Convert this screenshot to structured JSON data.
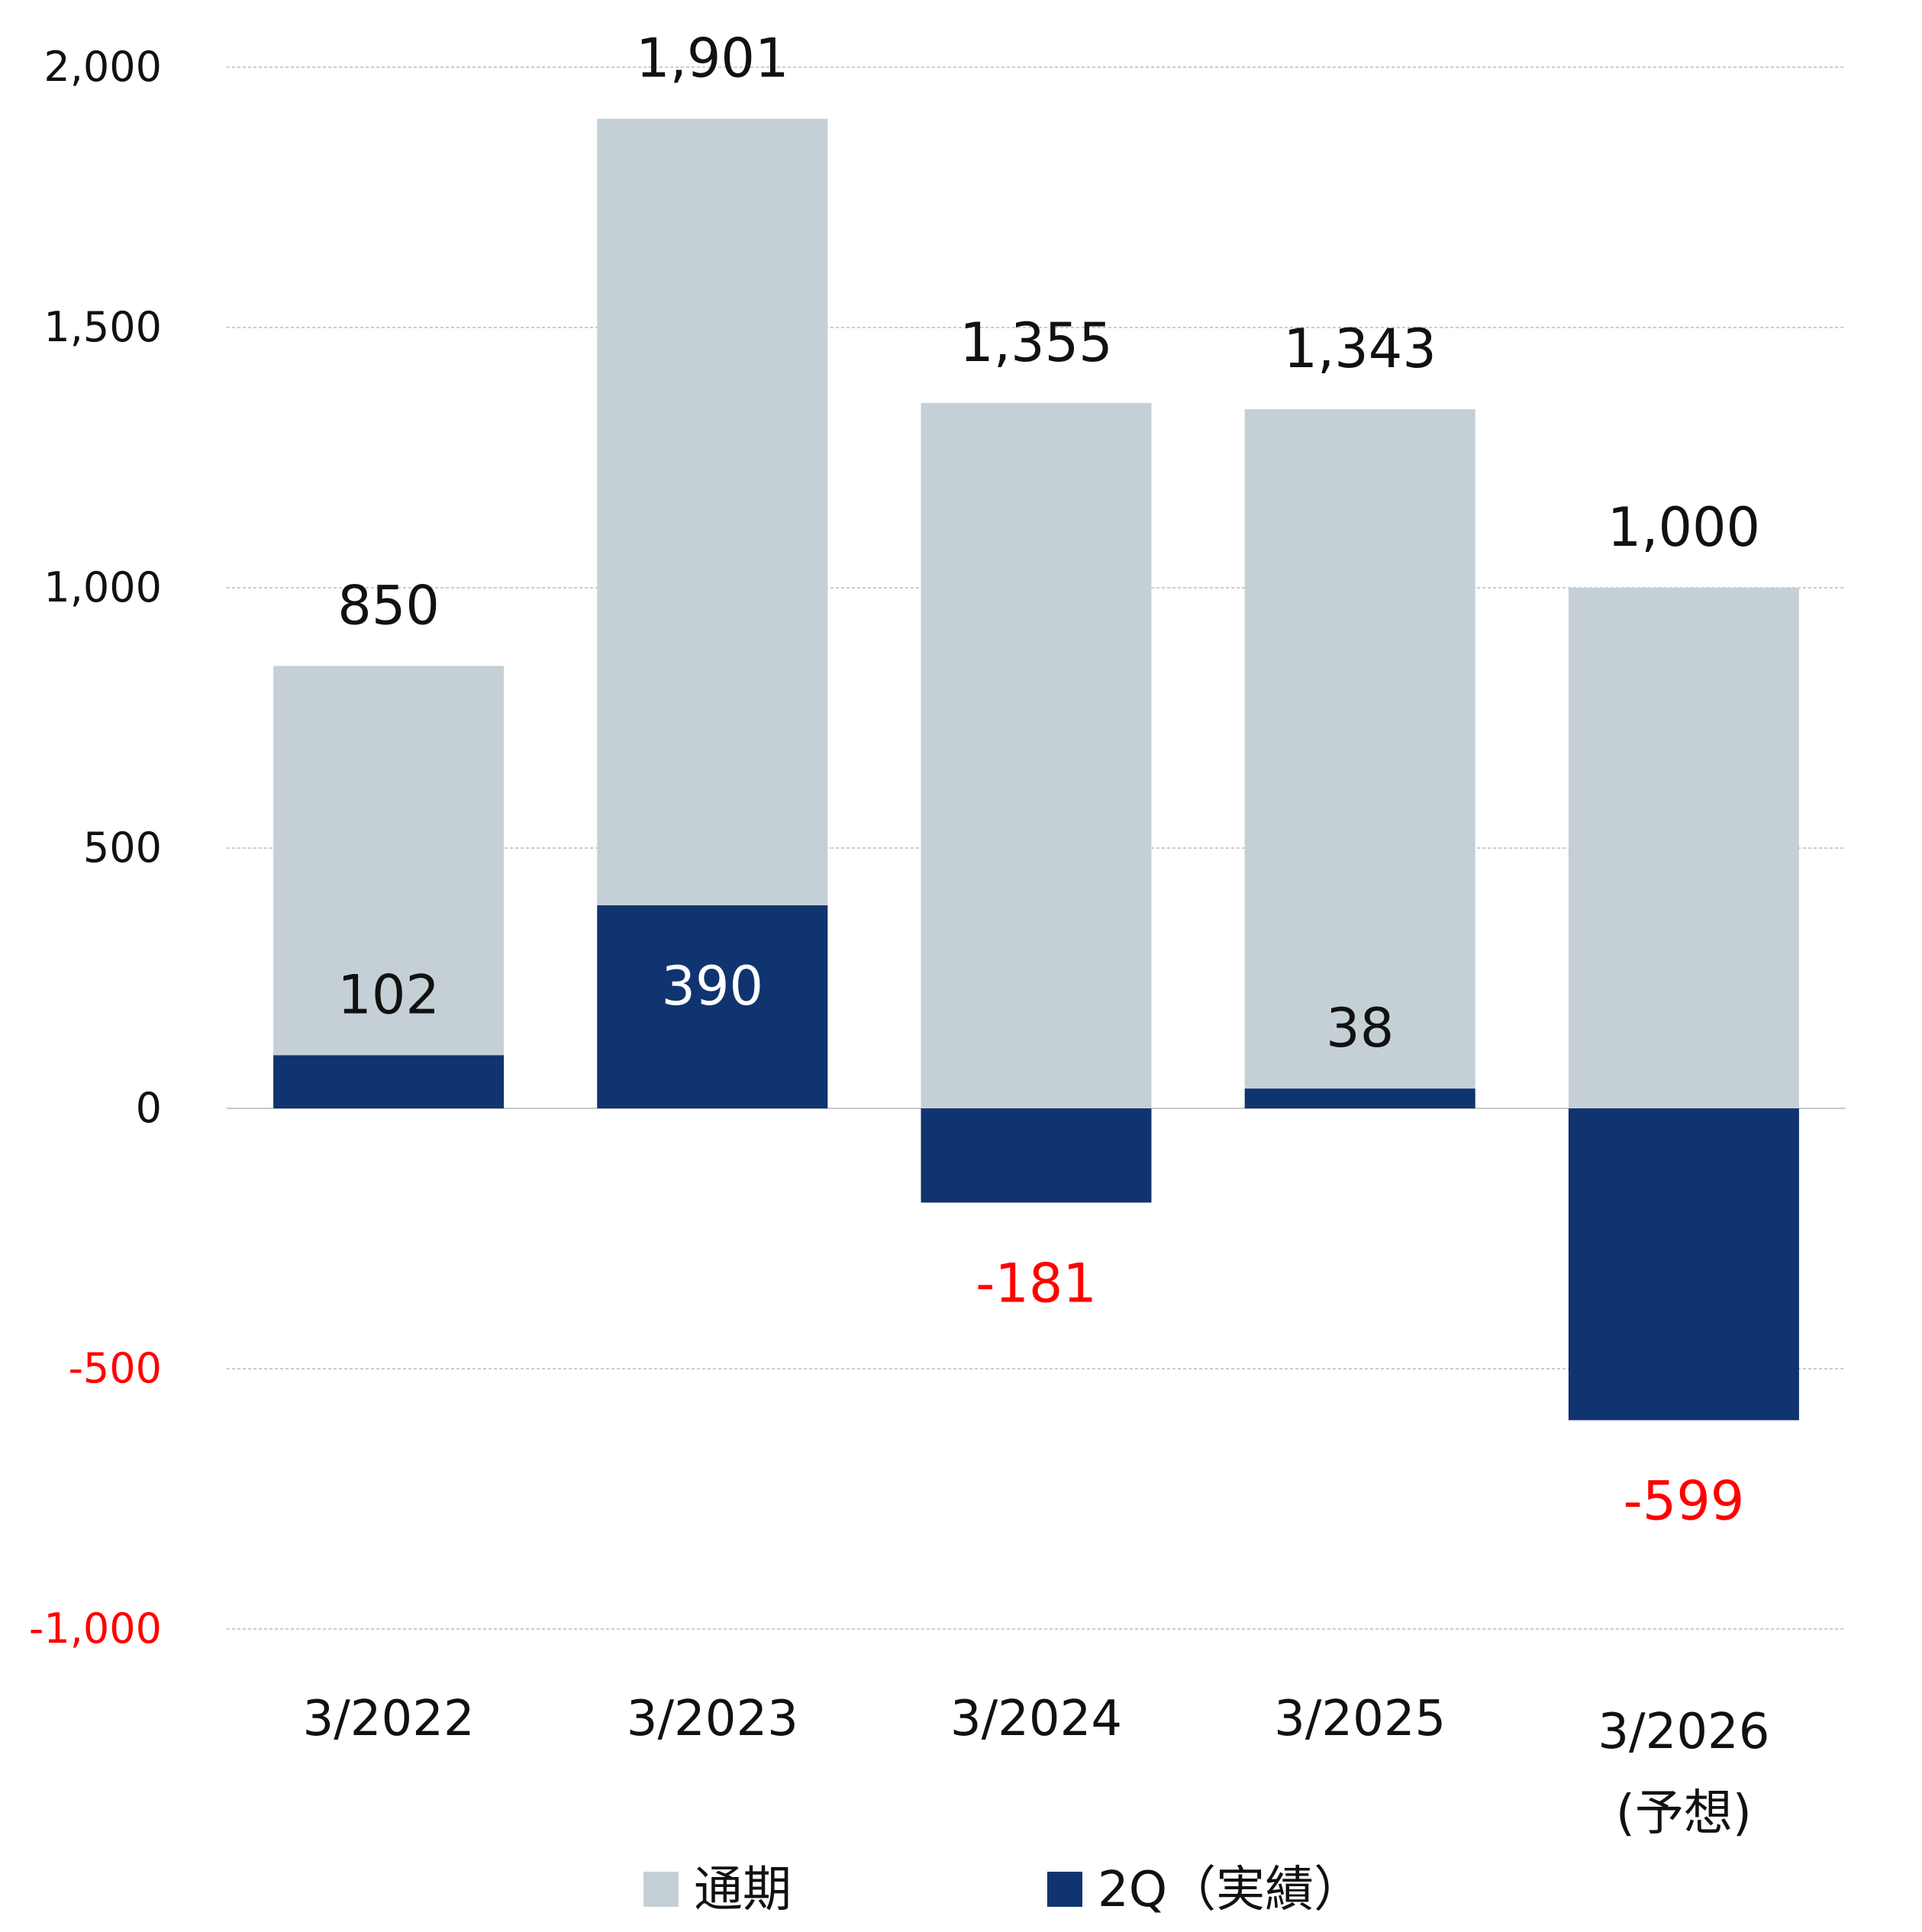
{
  "chart_data": {
    "type": "bar",
    "categories": [
      "3/2022",
      "3/2023",
      "3/2024",
      "3/2025",
      "3/2026"
    ],
    "category_sublabels": [
      "",
      "",
      "",
      "",
      "(予想)"
    ],
    "series": [
      {
        "name": "通期",
        "values": [
          850,
          1901,
          1355,
          1343,
          1000
        ],
        "labels": [
          "850",
          "1,901",
          "1,355",
          "1,343",
          "1,000"
        ]
      },
      {
        "name": "2Q（実績）",
        "values": [
          102,
          390,
          -181,
          38,
          -599
        ],
        "labels": [
          "102",
          "390",
          "-181",
          "38",
          "-599"
        ]
      }
    ],
    "yaxis": {
      "ylim": [
        -1000,
        2000
      ],
      "ticks": [
        2000,
        1500,
        1000,
        500,
        0,
        -500,
        -1000
      ],
      "tick_labels": [
        "2,000",
        "1,500",
        "1,000",
        "500",
        "0",
        "-500",
        "-1,000"
      ]
    },
    "grid": true,
    "legend_position": "bottom-center",
    "title": "",
    "xlabel": "",
    "ylabel": ""
  },
  "colors": {
    "full_year": "#c5d0d6",
    "q2": "#10346f",
    "negative_text": "#ff0000",
    "text": "#111111",
    "inbar_text": "#ffffff",
    "grid": "#bbbbbb"
  }
}
